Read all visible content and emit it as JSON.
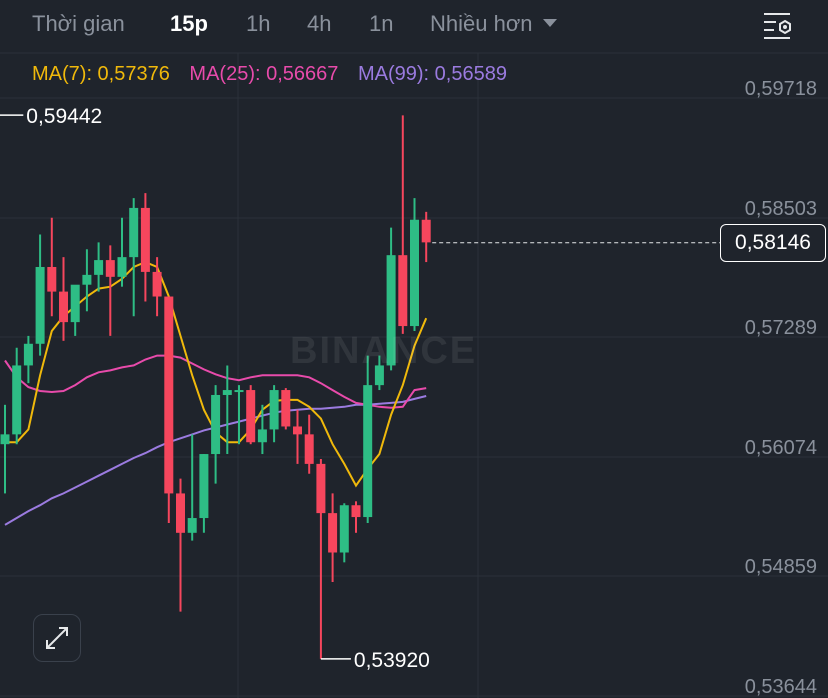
{
  "tabs": [
    {
      "label": "Thời gian",
      "active": false
    },
    {
      "label": "15p",
      "active": true
    },
    {
      "label": "1h",
      "active": false
    },
    {
      "label": "4h",
      "active": false
    },
    {
      "label": "1n",
      "active": false
    },
    {
      "label": "Nhiều hơn",
      "active": false
    }
  ],
  "ma_legend": {
    "ma7": "MA(7): 0,57376",
    "ma25": "MA(25): 0,56667",
    "ma99": "MA(99): 0,56589"
  },
  "watermark": "BINANCE",
  "current_price": "0,58146",
  "colors": {
    "up": "#2ebd85",
    "down": "#f6465d",
    "ma7": "#f0b90b",
    "ma25": "#e84bab",
    "ma99": "#9b7be0"
  },
  "chart_data": {
    "type": "candlestick",
    "y_axis_labels": [
      "0,59718",
      "0,58503",
      "0,57289",
      "0,56074",
      "0,54859",
      "0,53644"
    ],
    "y_axis_values": [
      0.59718,
      0.58503,
      0.57289,
      0.56074,
      0.54859,
      0.53644
    ],
    "ylim": [
      0.53644,
      0.59718
    ],
    "high_marker": {
      "label": "0,59442",
      "value": 0.59442
    },
    "low_marker": {
      "label": "0,53920",
      "value": 0.5392
    },
    "current_price_value": 0.58146,
    "candles": [
      {
        "o": 0.561,
        "h": 0.565,
        "c": 0.562,
        "l": 0.556
      },
      {
        "o": 0.562,
        "h": 0.5708,
        "c": 0.569,
        "l": 0.561
      },
      {
        "o": 0.569,
        "h": 0.572,
        "c": 0.5712,
        "l": 0.5672
      },
      {
        "o": 0.5712,
        "h": 0.5823,
        "c": 0.579,
        "l": 0.57
      },
      {
        "o": 0.579,
        "h": 0.584,
        "c": 0.5765,
        "l": 0.574
      },
      {
        "o": 0.5765,
        "h": 0.58,
        "c": 0.5734,
        "l": 0.5715
      },
      {
        "o": 0.5734,
        "h": 0.577,
        "c": 0.5772,
        "l": 0.572
      },
      {
        "o": 0.5772,
        "h": 0.5808,
        "c": 0.5782,
        "l": 0.5745
      },
      {
        "o": 0.5782,
        "h": 0.5815,
        "c": 0.5797,
        "l": 0.5765
      },
      {
        "o": 0.5797,
        "h": 0.5812,
        "c": 0.578,
        "l": 0.572
      },
      {
        "o": 0.578,
        "h": 0.584,
        "c": 0.58,
        "l": 0.577
      },
      {
        "o": 0.58,
        "h": 0.586,
        "c": 0.585,
        "l": 0.574
      },
      {
        "o": 0.585,
        "h": 0.5865,
        "c": 0.5785,
        "l": 0.5755
      },
      {
        "o": 0.5785,
        "h": 0.58,
        "c": 0.576,
        "l": 0.574
      },
      {
        "o": 0.576,
        "h": 0.576,
        "c": 0.556,
        "l": 0.553
      },
      {
        "o": 0.556,
        "h": 0.5575,
        "c": 0.552,
        "l": 0.544
      },
      {
        "o": 0.552,
        "h": 0.562,
        "c": 0.5535,
        "l": 0.5512
      },
      {
        "o": 0.5535,
        "h": 0.56,
        "c": 0.56,
        "l": 0.552
      },
      {
        "o": 0.56,
        "h": 0.567,
        "c": 0.566,
        "l": 0.557
      },
      {
        "o": 0.566,
        "h": 0.569,
        "c": 0.5665,
        "l": 0.56
      },
      {
        "o": 0.5665,
        "h": 0.567,
        "c": 0.5665,
        "l": 0.561
      },
      {
        "o": 0.5665,
        "h": 0.567,
        "c": 0.5612,
        "l": 0.561
      },
      {
        "o": 0.5612,
        "h": 0.565,
        "c": 0.5625,
        "l": 0.56
      },
      {
        "o": 0.5625,
        "h": 0.567,
        "c": 0.5665,
        "l": 0.5612
      },
      {
        "o": 0.5665,
        "h": 0.5667,
        "c": 0.5628,
        "l": 0.5625
      },
      {
        "o": 0.5628,
        "h": 0.5645,
        "c": 0.562,
        "l": 0.559
      },
      {
        "o": 0.562,
        "h": 0.564,
        "c": 0.559,
        "l": 0.558
      },
      {
        "o": 0.559,
        "h": 0.5595,
        "c": 0.554,
        "l": 0.5392
      },
      {
        "o": 0.554,
        "h": 0.556,
        "c": 0.55,
        "l": 0.547
      },
      {
        "o": 0.55,
        "h": 0.555,
        "c": 0.5548,
        "l": 0.549
      },
      {
        "o": 0.5548,
        "h": 0.5552,
        "c": 0.5536,
        "l": 0.552
      },
      {
        "o": 0.5536,
        "h": 0.57,
        "c": 0.567,
        "l": 0.553
      },
      {
        "o": 0.567,
        "h": 0.57,
        "c": 0.569,
        "l": 0.5665
      },
      {
        "o": 0.569,
        "h": 0.583,
        "c": 0.5802,
        "l": 0.5685
      },
      {
        "o": 0.5802,
        "h": 0.5944,
        "c": 0.573,
        "l": 0.5722
      },
      {
        "o": 0.573,
        "h": 0.586,
        "c": 0.5838,
        "l": 0.5725
      },
      {
        "o": 0.5838,
        "h": 0.5846,
        "c": 0.5815,
        "l": 0.5795
      }
    ],
    "ma7": [
      0.5612,
      0.5612,
      0.5625,
      0.568,
      0.5725,
      0.574,
      0.575,
      0.576,
      0.5768,
      0.577,
      0.5778,
      0.579,
      0.5795,
      0.579,
      0.576,
      0.572,
      0.568,
      0.5645,
      0.5622,
      0.5612,
      0.5612,
      0.5625,
      0.5645,
      0.5654,
      0.5655,
      0.5655,
      0.5648,
      0.5636,
      0.561,
      0.559,
      0.5568,
      0.5585,
      0.56,
      0.564,
      0.567,
      0.571,
      0.5738
    ],
    "ma25": [
      0.5695,
      0.5678,
      0.5668,
      0.5664,
      0.5663,
      0.5664,
      0.567,
      0.5678,
      0.5683,
      0.5685,
      0.5688,
      0.569,
      0.5696,
      0.57,
      0.57,
      0.5698,
      0.5692,
      0.5686,
      0.5681,
      0.5677,
      0.5675,
      0.5678,
      0.568,
      0.568,
      0.568,
      0.568,
      0.5678,
      0.5672,
      0.5665,
      0.5658,
      0.5652,
      0.565,
      0.5648,
      0.5647,
      0.5648,
      0.5665,
      0.5667
    ],
    "ma99": [
      0.5528,
      0.5535,
      0.5542,
      0.5548,
      0.5555,
      0.556,
      0.5566,
      0.5572,
      0.5578,
      0.5584,
      0.559,
      0.5596,
      0.5601,
      0.5607,
      0.5612,
      0.5616,
      0.562,
      0.5624,
      0.5627,
      0.563,
      0.5633,
      0.5636,
      0.5639,
      0.5642,
      0.5644,
      0.5645,
      0.5646,
      0.5646,
      0.5647,
      0.5648,
      0.565,
      0.565,
      0.5651,
      0.5652,
      0.5653,
      0.5656,
      0.5659
    ]
  }
}
